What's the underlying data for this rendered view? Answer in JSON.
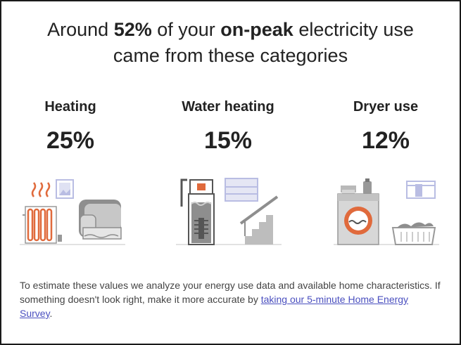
{
  "headline": {
    "part1": "Around ",
    "percent": "52%",
    "part2": " of your ",
    "emphasis": "on-peak",
    "part3": " electricity use",
    "line2": "came from these categories"
  },
  "categories": [
    {
      "label": "Heating",
      "percent": "25%",
      "icon": "heating-radiator-icon"
    },
    {
      "label": "Water heating",
      "percent": "15%",
      "icon": "water-heater-icon"
    },
    {
      "label": "Dryer use",
      "percent": "12%",
      "icon": "dryer-icon"
    }
  ],
  "footnote": {
    "text": "To estimate these values we analyze your energy use data and available home characteristics. If something doesn't look right, make it more accurate by ",
    "link": "taking our 5-minute Home Energy Survey",
    "end": "."
  },
  "colors": {
    "accent_orange": "#e06a3c",
    "link_blue": "#4a4fbf",
    "gray": "#8e8e8e",
    "light_gray": "#d7d7d7",
    "lavender": "#b9bde3"
  }
}
